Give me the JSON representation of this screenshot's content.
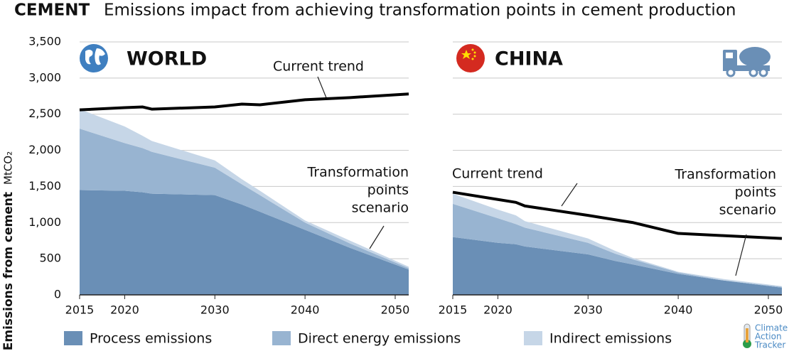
{
  "title_bold": "CEMENT",
  "title": "Emissions impact from achieving transformation points in cement production",
  "y_label": "Emissions from cement",
  "y_unit": "MtCO₂",
  "logo": [
    "Climate",
    "Action",
    "Tracker"
  ],
  "chart_data": [
    {
      "type": "area",
      "stacked": true,
      "panel": "WORLD",
      "x": [
        2015,
        2020,
        2022,
        2023,
        2030,
        2033,
        2035,
        2040,
        2045,
        2051.5
      ],
      "xlim": [
        2015,
        2051.5
      ],
      "xticks": [
        2015,
        2020,
        2030,
        2040,
        2050
      ],
      "ylim": [
        0,
        3500
      ],
      "yticks": [
        0,
        500,
        {
          "value": 1000,
          "label": "1,000"
        },
        {
          "value": 1500,
          "label": "1,500"
        },
        {
          "value": 2000,
          "label": "2,000"
        },
        {
          "value": 2500,
          "label": "2,500"
        },
        {
          "value": 3000,
          "label": "3,000"
        },
        {
          "value": 3500,
          "label": "3,500"
        }
      ],
      "grid": true,
      "series": [
        {
          "name": "Process emissions",
          "color": "#6a8fb6",
          "values": [
            1450,
            1440,
            1420,
            1400,
            1380,
            1250,
            1150,
            900,
            650,
            350
          ]
        },
        {
          "name": "Direct energy emissions",
          "color": "#98b4d1",
          "values": [
            850,
            660,
            610,
            580,
            380,
            280,
            230,
            100,
            60,
            20
          ]
        },
        {
          "name": "Indirect emissions",
          "color": "#c6d6e7",
          "values": [
            270,
            230,
            170,
            150,
            100,
            70,
            60,
            30,
            40,
            20
          ]
        },
        {
          "name": "Current trend",
          "color": "#000000",
          "type": "line",
          "values": [
            2560,
            2590,
            2600,
            2570,
            2600,
            2640,
            2630,
            2700,
            2730,
            2780
          ]
        }
      ],
      "annotations": [
        [
          "Current trend"
        ],
        [
          "Transformation",
          "points",
          "scenario"
        ]
      ]
    },
    {
      "type": "area",
      "stacked": true,
      "panel": "CHINA",
      "x": [
        2015,
        2020,
        2022,
        2023,
        2030,
        2033,
        2035,
        2040,
        2045,
        2051.5
      ],
      "xlim": [
        2015,
        2051.5
      ],
      "xticks": [
        2015,
        2020,
        2030,
        2040,
        2050
      ],
      "ylim": [
        0,
        3500
      ],
      "yticks": [
        0,
        500,
        1000,
        1500,
        2000,
        2500,
        3000,
        3500
      ],
      "grid": true,
      "series": [
        {
          "name": "Process emissions",
          "color": "#6a8fb6",
          "values": [
            800,
            720,
            700,
            670,
            560,
            470,
            420,
            290,
            200,
            100
          ]
        },
        {
          "name": "Direct energy emissions",
          "color": "#98b4d1",
          "values": [
            460,
            340,
            280,
            260,
            160,
            100,
            70,
            20,
            0,
            10
          ]
        },
        {
          "name": "Indirect emissions",
          "color": "#c6d6e7",
          "values": [
            140,
            120,
            120,
            90,
            60,
            40,
            20,
            10,
            20,
            10
          ]
        },
        {
          "name": "Current trend",
          "color": "#000000",
          "type": "line",
          "values": [
            1420,
            1320,
            1280,
            1230,
            1100,
            1040,
            1000,
            850,
            820,
            780
          ]
        }
      ],
      "annotations": [
        [
          "Current trend"
        ],
        [
          "Transformation",
          "points",
          "scenario"
        ]
      ]
    }
  ]
}
